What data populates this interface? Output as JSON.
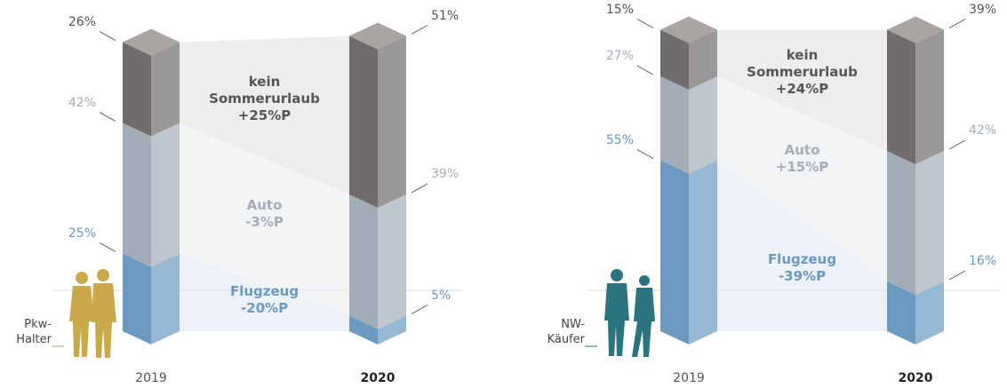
{
  "chart_data": [
    {
      "type": "bar3d",
      "group_label": "Pkw-Halter",
      "categories": [
        "2019",
        "2020"
      ],
      "ylim": [
        0,
        100
      ],
      "series": [
        {
          "name": "Flugzeug",
          "color": "#6b99c0",
          "values": [
            25,
            5
          ],
          "value_labels": [
            "25%",
            "5%"
          ],
          "change_label": "-20%P"
        },
        {
          "name": "Auto",
          "color": "#a3adb8",
          "values": [
            42,
            39
          ],
          "value_labels": [
            "42%",
            "39%"
          ],
          "change_label": "-3%P"
        },
        {
          "name": "kein Sommerurlaub",
          "color": "#6f6c6b",
          "values": [
            26,
            51
          ],
          "value_labels": [
            "26%",
            "51%"
          ],
          "change_label": "+25%P"
        }
      ]
    },
    {
      "type": "bar3d",
      "group_label": "NW-Käufer",
      "categories": [
        "2019",
        "2020"
      ],
      "ylim": [
        0,
        100
      ],
      "series": [
        {
          "name": "Flugzeug",
          "color": "#6b99c0",
          "values": [
            55,
            16
          ],
          "value_labels": [
            "55%",
            "16%"
          ],
          "change_label": "-39%P"
        },
        {
          "name": "Auto",
          "color": "#a3adb8",
          "values": [
            27,
            42
          ],
          "value_labels": [
            "27%",
            "42%"
          ],
          "change_label": "+15%P"
        },
        {
          "name": "kein Sommerurlaub",
          "color": "#6f6c6b",
          "values": [
            15,
            39
          ],
          "value_labels": [
            "15%",
            "39%"
          ],
          "change_label": "+24%P"
        }
      ]
    }
  ]
}
